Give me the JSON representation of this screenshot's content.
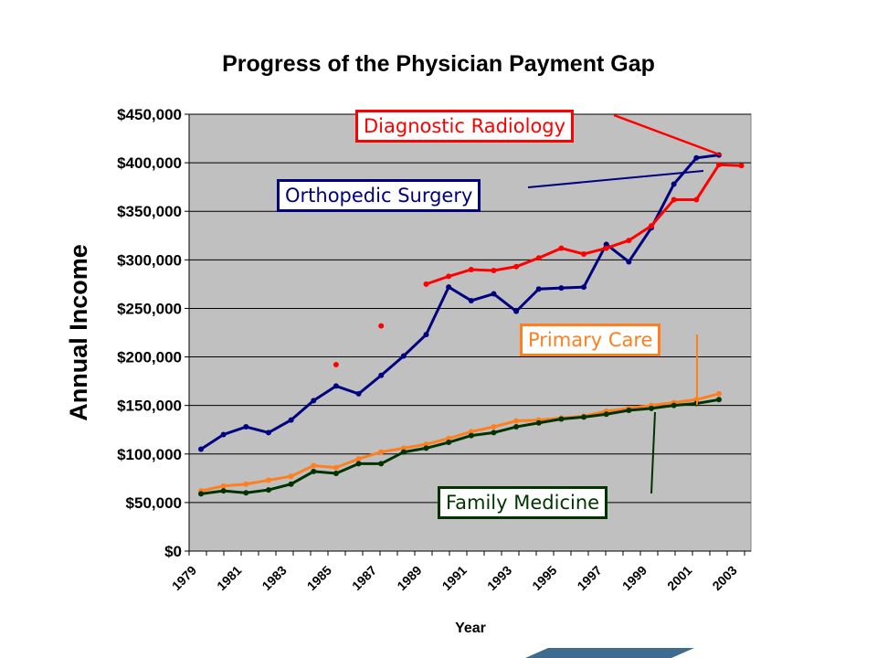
{
  "chart_data": {
    "type": "line",
    "title": "Progress of the Physician Payment Gap",
    "xlabel": "Year",
    "ylabel": "Annual Income",
    "ylim": [
      0,
      450000
    ],
    "yticks": [
      "$0",
      "$50,000",
      "$100,000",
      "$150,000",
      "$200,000",
      "$250,000",
      "$300,000",
      "$350,000",
      "$400,000",
      "$450,000"
    ],
    "xtick_labels": [
      "1979",
      "1981",
      "1983",
      "1985",
      "1987",
      "1989",
      "1991",
      "1993",
      "1995",
      "1997",
      "1999",
      "2001",
      "2003"
    ],
    "grid": true,
    "plot_background": "#c0c0c0",
    "x": [
      1979,
      1980,
      1981,
      1982,
      1983,
      1984,
      1985,
      1986,
      1987,
      1988,
      1989,
      1990,
      1991,
      1992,
      1993,
      1994,
      1995,
      1996,
      1997,
      1998,
      1999,
      2000,
      2001,
      2002,
      2003
    ],
    "series": [
      {
        "name": "Orthopedic Surgery",
        "color": "#000080",
        "values": [
          105000,
          120000,
          128000,
          122000,
          135000,
          155000,
          170000,
          162000,
          181000,
          201000,
          223000,
          272000,
          258000,
          265000,
          247000,
          270000,
          271000,
          272000,
          316000,
          298000,
          333000,
          378000,
          405000,
          408000,
          null
        ]
      },
      {
        "name": "Diagnostic Radiology",
        "color": "#ff0000",
        "values": [
          null,
          null,
          null,
          null,
          null,
          null,
          192000,
          null,
          232000,
          null,
          275000,
          283000,
          290000,
          289000,
          293000,
          302000,
          312000,
          306000,
          312000,
          320000,
          335000,
          362000,
          362000,
          398000,
          397000
        ]
      },
      {
        "name": "Primary Care",
        "color": "#ff7f1f",
        "values": [
          62000,
          67000,
          69000,
          73000,
          77000,
          88000,
          86000,
          95000,
          102000,
          106000,
          110000,
          116000,
          123000,
          128000,
          134000,
          135000,
          137000,
          139000,
          144000,
          147000,
          150000,
          153000,
          156000,
          162000,
          null
        ]
      },
      {
        "name": "Family Medicine",
        "color": "#003300",
        "values": [
          59000,
          62000,
          60000,
          63000,
          69000,
          82000,
          80000,
          90000,
          90000,
          102000,
          106000,
          112000,
          119000,
          122000,
          128000,
          132000,
          136000,
          138000,
          141000,
          145000,
          147000,
          150000,
          152000,
          156000,
          null
        ]
      }
    ]
  }
}
